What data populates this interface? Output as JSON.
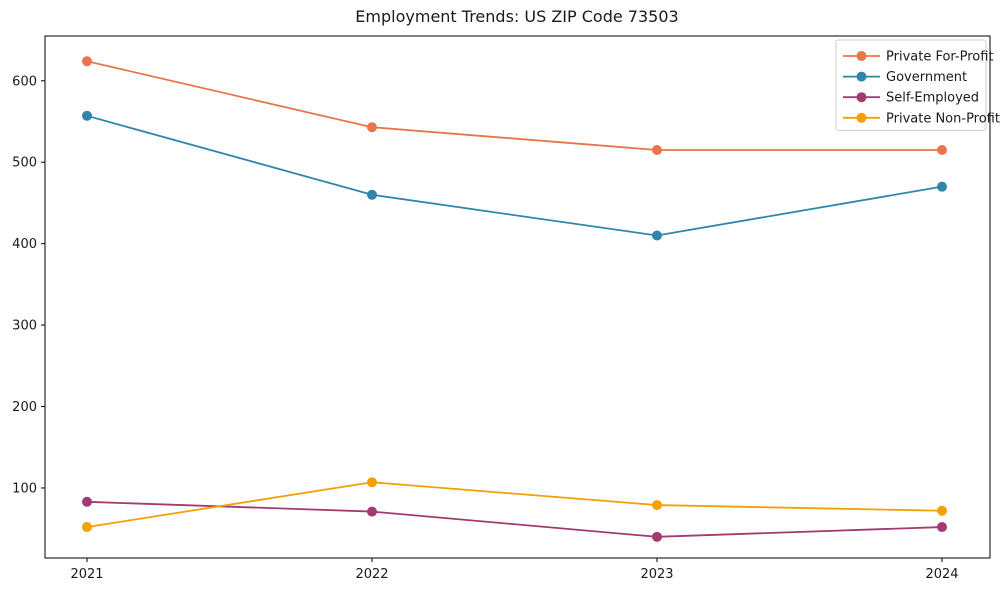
{
  "chart_data": {
    "type": "line",
    "title": "Employment Trends: US ZIP Code 73503",
    "xlabel": "",
    "ylabel": "",
    "categories": [
      "2021",
      "2022",
      "2023",
      "2024"
    ],
    "series": [
      {
        "name": "Private For-Profit",
        "color": "#E8764B",
        "values": [
          624,
          543,
          515,
          515
        ]
      },
      {
        "name": "Government",
        "color": "#2E86AB",
        "values": [
          557,
          460,
          410,
          470
        ]
      },
      {
        "name": "Self-Employed",
        "color": "#A23B72",
        "values": [
          83,
          71,
          40,
          52
        ]
      },
      {
        "name": "Private Non-Profit",
        "color": "#F5A002",
        "values": [
          52,
          107,
          79,
          72
        ]
      }
    ],
    "yticks": [
      100,
      200,
      300,
      400,
      500,
      600
    ],
    "ylim": [
      14,
      655
    ],
    "grid": false,
    "legend_position": "upper right",
    "axis_color": "#000000",
    "background_color": "#ffffff",
    "text_color": "#1a1a1a"
  }
}
